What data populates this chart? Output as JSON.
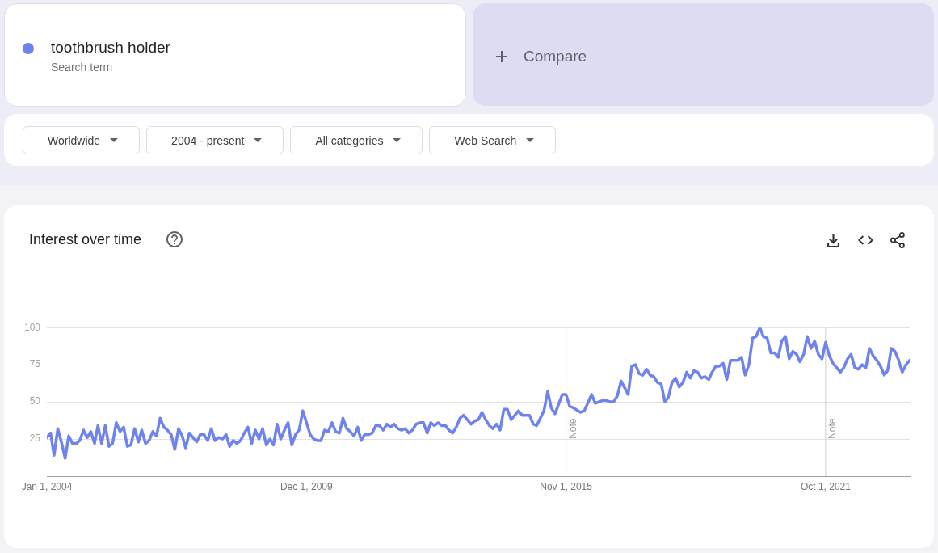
{
  "chart_data": {
    "type": "line",
    "title": "Interest over time",
    "x": [
      "2004-01",
      "2004-02",
      "2004-03",
      "2004-04",
      "2004-05",
      "2004-06",
      "2004-07",
      "2004-08",
      "2004-09",
      "2004-10",
      "2004-11",
      "2004-12",
      "2005-01",
      "2005-02",
      "2005-03",
      "2005-04",
      "2005-05",
      "2005-06",
      "2005-07",
      "2005-08",
      "2005-09",
      "2005-10",
      "2005-11",
      "2005-12",
      "2006-01",
      "2006-02",
      "2006-03",
      "2006-04",
      "2006-05",
      "2006-06",
      "2006-07",
      "2006-08",
      "2006-09",
      "2006-10",
      "2006-11",
      "2006-12",
      "2007-01",
      "2007-02",
      "2007-03",
      "2007-04",
      "2007-05",
      "2007-06",
      "2007-07",
      "2007-08",
      "2007-09",
      "2007-10",
      "2007-11",
      "2007-12",
      "2008-01",
      "2008-02",
      "2008-03",
      "2008-04",
      "2008-05",
      "2008-06",
      "2008-07",
      "2008-08",
      "2008-09",
      "2008-10",
      "2008-11",
      "2008-12",
      "2009-01",
      "2009-02",
      "2009-03",
      "2009-04",
      "2009-05",
      "2009-06",
      "2009-07",
      "2009-08",
      "2009-09",
      "2009-10",
      "2009-11",
      "2009-12",
      "2010-01",
      "2010-02",
      "2010-03",
      "2010-04",
      "2010-05",
      "2010-06",
      "2010-07",
      "2010-08",
      "2010-09",
      "2010-10",
      "2010-11",
      "2010-12",
      "2011-01",
      "2011-02",
      "2011-03",
      "2011-04",
      "2011-05",
      "2011-06",
      "2011-07",
      "2011-08",
      "2011-09",
      "2011-10",
      "2011-11",
      "2011-12",
      "2012-01",
      "2012-02",
      "2012-03",
      "2012-04",
      "2012-05",
      "2012-06",
      "2012-07",
      "2012-08",
      "2012-09",
      "2012-10",
      "2012-11",
      "2012-12",
      "2013-01",
      "2013-02",
      "2013-03",
      "2013-04",
      "2013-05",
      "2013-06",
      "2013-07",
      "2013-08",
      "2013-09",
      "2013-10",
      "2013-11",
      "2013-12",
      "2014-01",
      "2014-02",
      "2014-03",
      "2014-04",
      "2014-05",
      "2014-06",
      "2014-07",
      "2014-08",
      "2014-10",
      "2014-11",
      "2015-01",
      "2015-02",
      "2015-03",
      "2015-05",
      "2015-06",
      "2015-07",
      "2015-08",
      "2015-10",
      "2015-11",
      "2015-12",
      "2016-01",
      "2016-03",
      "2016-04",
      "2016-06",
      "2016-07",
      "2016-09",
      "2016-10",
      "2016-11",
      "2016-12",
      "2017-01",
      "2017-02",
      "2017-04",
      "2017-05",
      "2017-06",
      "2017-07",
      "2017-08",
      "2017-09",
      "2017-10",
      "2017-11",
      "2017-12",
      "2018-01",
      "2018-02",
      "2018-03",
      "2018-04",
      "2018-05",
      "2018-06",
      "2018-07",
      "2018-08",
      "2018-09",
      "2018-10",
      "2018-11",
      "2018-12",
      "2019-01",
      "2019-02",
      "2019-03",
      "2019-04",
      "2019-05",
      "2019-06",
      "2019-07",
      "2019-08",
      "2019-10",
      "2019-11",
      "2019-12",
      "2020-01",
      "2020-02",
      "2020-03",
      "2020-04",
      "2020-05",
      "2020-06",
      "2020-07",
      "2020-08",
      "2020-09",
      "2020-10",
      "2020-11",
      "2020-12",
      "2021-01",
      "2021-02",
      "2021-03",
      "2021-04",
      "2021-05",
      "2021-06",
      "2021-07",
      "2021-08",
      "2021-09",
      "2021-10",
      "2021-11",
      "2021-12",
      "2022-02",
      "2022-03",
      "2022-04",
      "2022-05",
      "2022-06",
      "2022-07",
      "2022-08",
      "2022-09",
      "2022-10",
      "2022-11",
      "2022-12",
      "2023-01",
      "2023-02",
      "2023-03",
      "2023-04",
      "2023-05",
      "2023-06",
      "2023-07",
      "2023-08",
      "2023-09"
    ],
    "series": [
      {
        "name": "toothbrush holder",
        "color": "#6f83ee",
        "values": [
          26,
          29,
          14,
          32,
          23,
          12,
          27,
          22,
          22,
          24,
          31,
          26,
          30,
          22,
          34,
          22,
          34,
          20,
          22,
          36,
          30,
          33,
          20,
          21,
          32,
          23,
          31,
          22,
          24,
          30,
          27,
          39,
          33,
          31,
          28,
          18,
          32,
          27,
          19,
          29,
          26,
          23,
          28,
          28,
          24,
          32,
          24,
          26,
          25,
          28,
          20,
          24,
          22,
          24,
          29,
          33,
          22,
          31,
          25,
          32,
          21,
          25,
          21,
          35,
          25,
          31,
          36,
          21,
          28,
          31,
          44,
          36,
          28,
          25,
          24,
          24,
          31,
          30,
          36,
          30,
          29,
          39,
          32,
          30,
          27,
          33,
          24,
          28,
          28,
          29,
          34,
          34,
          31,
          35,
          33,
          35,
          32,
          31,
          32,
          29,
          31,
          35,
          36,
          36,
          29,
          36,
          34,
          36,
          34,
          34,
          31,
          29,
          33,
          39,
          41,
          38,
          35,
          37,
          38,
          43,
          38,
          34,
          32,
          35,
          31,
          45,
          45,
          38,
          44,
          41,
          41,
          35,
          34,
          44,
          57,
          46,
          42,
          55,
          55,
          47,
          46,
          43,
          44,
          55,
          49,
          51,
          51,
          50,
          50,
          54,
          64,
          55,
          74,
          75,
          69,
          68,
          72,
          68,
          67,
          63,
          62,
          50,
          53,
          63,
          66,
          60,
          63,
          70,
          66,
          71,
          70,
          66,
          67,
          65,
          70,
          74,
          74,
          76,
          65,
          78,
          78,
          80,
          68,
          75,
          93,
          94,
          100,
          94,
          93,
          83,
          83,
          80,
          91,
          94,
          79,
          84,
          82,
          77,
          82,
          94,
          86,
          91,
          82,
          79,
          90,
          81,
          76,
          70,
          73,
          79,
          82,
          73,
          72,
          75,
          73,
          86,
          81,
          78,
          74,
          68,
          71,
          86,
          84,
          78,
          70,
          75,
          78
        ]
      }
    ],
    "xlim": [
      "2004-01",
      "2023-09"
    ],
    "xticks": [
      {
        "value": "2004-01-01",
        "label": "Jan 1, 2004"
      },
      {
        "value": "2009-12-01",
        "label": "Dec 1, 2009"
      },
      {
        "value": "2015-11-01",
        "label": "Nov 1, 2015"
      },
      {
        "value": "2021-10-01",
        "label": "Oct 1, 2021"
      }
    ],
    "ylim": [
      0,
      100
    ],
    "yticks": [
      25,
      50,
      75,
      100
    ],
    "grid": "y",
    "legend": "top left",
    "ref_lines": [
      {
        "axis": "x",
        "value": "2015-11-01",
        "label": "Note",
        "color": "#cccccc"
      },
      {
        "axis": "x",
        "value": "2021-10-01",
        "label": "Note",
        "color": "#cccccc"
      }
    ],
    "annotations": [
      "Search term",
      "Compare",
      "Worldwide",
      "2004 - present",
      "All categories",
      "Web Search"
    ]
  }
}
